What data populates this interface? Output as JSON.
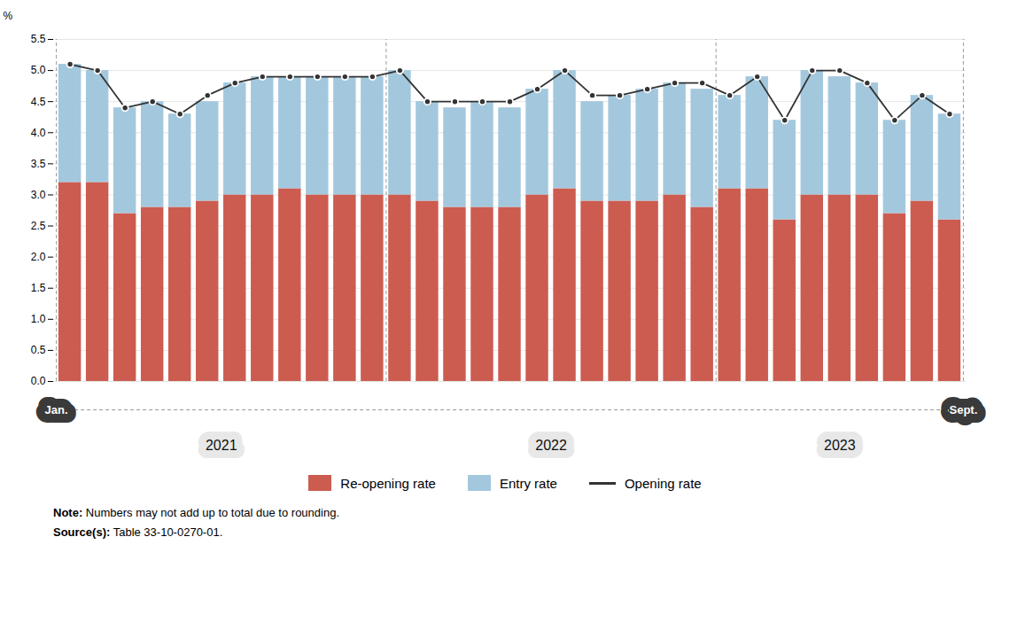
{
  "chart_data": {
    "type": "bar",
    "stacked": true,
    "grid": true,
    "legend": "bottom",
    "tick_labels": "y",
    "ylabel": "%",
    "categories": [
      null,
      null,
      null,
      null,
      null,
      null,
      null,
      null,
      null,
      null,
      null,
      null,
      null,
      null,
      null,
      null,
      null,
      null,
      null,
      null,
      null,
      null,
      null,
      null,
      null,
      null,
      null,
      null,
      null,
      null,
      null,
      null,
      null
    ],
    "series": [
      {
        "name": "Re-opening rate",
        "type": "bar",
        "color": "#cc5c50",
        "values": [
          3.2,
          3.2,
          2.7,
          2.8,
          2.8,
          2.9,
          3.0,
          3.0,
          3.1,
          3.0,
          3.0,
          3.0,
          3.0,
          2.9,
          2.8,
          2.8,
          2.8,
          3.0,
          3.1,
          2.9,
          2.9,
          2.9,
          3.0,
          2.8,
          3.1,
          3.1,
          2.6,
          3.0,
          3.0,
          3.0,
          2.7,
          2.9,
          2.6
        ]
      },
      {
        "name": "Entry rate",
        "type": "bar",
        "color": "#a3c8de",
        "values": [
          1.9,
          1.8,
          1.7,
          1.7,
          1.5,
          1.6,
          1.8,
          1.9,
          1.8,
          1.9,
          1.9,
          1.9,
          2.0,
          1.6,
          1.6,
          1.7,
          1.6,
          1.7,
          1.9,
          1.6,
          1.7,
          1.8,
          1.8,
          1.9,
          1.5,
          1.8,
          1.6,
          2.0,
          1.9,
          1.8,
          1.5,
          1.7,
          1.7
        ]
      },
      {
        "name": "Opening rate",
        "type": "line",
        "color": "#333333",
        "marker": "circle",
        "values": [
          5.1,
          5.0,
          4.4,
          4.5,
          4.3,
          4.6,
          4.8,
          4.9,
          4.9,
          4.9,
          4.9,
          4.9,
          5.0,
          4.5,
          4.5,
          4.5,
          4.5,
          4.7,
          5.0,
          4.6,
          4.6,
          4.7,
          4.8,
          4.8,
          4.6,
          4.9,
          4.2,
          5.0,
          5.0,
          4.8,
          4.2,
          4.6,
          4.3
        ]
      }
    ],
    "ylim": [
      0,
      5.5
    ],
    "yticks": [
      {
        "value": 0,
        "label": "0.0"
      },
      0.5,
      {
        "value": 1,
        "label": "1.0"
      },
      1.5,
      {
        "value": 2,
        "label": "2.0"
      },
      2.5,
      {
        "value": 3,
        "label": "3.0"
      },
      3.5,
      {
        "value": 4,
        "label": "4.0"
      },
      4.5,
      {
        "value": 5,
        "label": "5.0"
      },
      5.5
    ],
    "annotations": [
      "Jan.",
      "Sept.",
      "2021",
      "2022",
      "2023",
      "Note: Numbers may not add up to total due to rounding.",
      "Source(s): Table 33-10-0270-01."
    ]
  }
}
